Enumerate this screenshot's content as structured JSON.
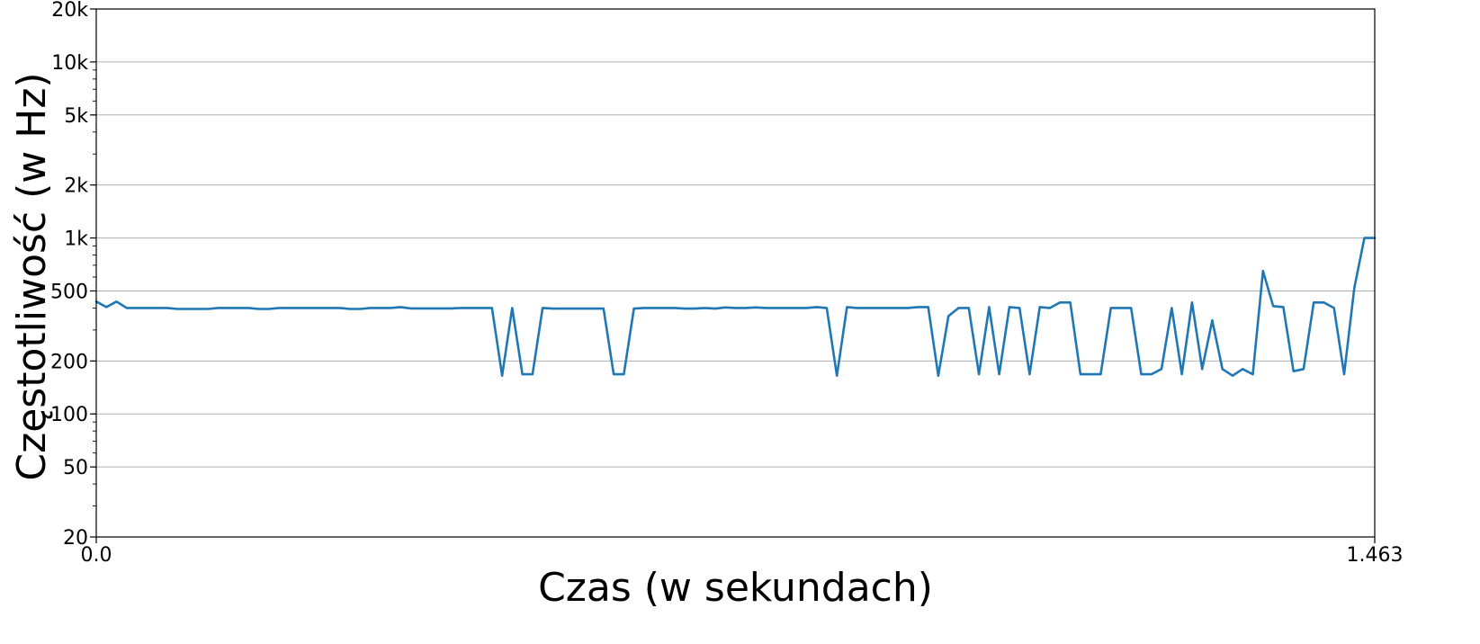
{
  "chart_data": {
    "type": "line",
    "title": "",
    "xlabel": "Czas (w sekundach)",
    "ylabel": "Częstotliwość (w Hz)",
    "xlim": [
      0.0,
      1.463
    ],
    "ylim": [
      20,
      20000
    ],
    "y_scale": "log",
    "grid": "horizontal",
    "x_ticks": [
      {
        "value": 0.0,
        "label": "0.0"
      },
      {
        "value": 1.463,
        "label": "1.463"
      }
    ],
    "y_ticks": [
      {
        "value": 20,
        "label": "20"
      },
      {
        "value": 50,
        "label": "50"
      },
      {
        "value": 100,
        "label": "100"
      },
      {
        "value": 200,
        "label": "200"
      },
      {
        "value": 500,
        "label": "500"
      },
      {
        "value": 1000,
        "label": "1k"
      },
      {
        "value": 2000,
        "label": "2k"
      },
      {
        "value": 5000,
        "label": "5k"
      },
      {
        "value": 10000,
        "label": "10k"
      },
      {
        "value": 20000,
        "label": "20k"
      }
    ],
    "series": [
      {
        "color": "#1f77b4",
        "x": [
          0.0,
          0.0116,
          0.0232,
          0.0348,
          0.0464,
          0.058,
          0.0697,
          0.0813,
          0.0929,
          0.1045,
          0.1161,
          0.1277,
          0.1393,
          0.1509,
          0.1625,
          0.1741,
          0.1858,
          0.1974,
          0.209,
          0.2206,
          0.2322,
          0.2438,
          0.2554,
          0.267,
          0.2786,
          0.2902,
          0.3019,
          0.3135,
          0.3251,
          0.3367,
          0.3483,
          0.3599,
          0.3715,
          0.3831,
          0.3947,
          0.4063,
          0.418,
          0.4296,
          0.4412,
          0.4528,
          0.4644,
          0.476,
          0.4876,
          0.4992,
          0.5108,
          0.5224,
          0.5341,
          0.5457,
          0.5573,
          0.5689,
          0.5805,
          0.5921,
          0.6037,
          0.6153,
          0.6269,
          0.6385,
          0.6502,
          0.6618,
          0.6734,
          0.685,
          0.6966,
          0.7082,
          0.7198,
          0.7314,
          0.743,
          0.7546,
          0.7663,
          0.7779,
          0.7895,
          0.8011,
          0.8127,
          0.8243,
          0.8359,
          0.8475,
          0.8591,
          0.8707,
          0.8824,
          0.894,
          0.9056,
          0.9172,
          0.9288,
          0.9404,
          0.952,
          0.9636,
          0.9752,
          0.9868,
          0.9985,
          1.0101,
          1.0217,
          1.0333,
          1.0449,
          1.0565,
          1.0681,
          1.0797,
          1.0913,
          1.1029,
          1.1146,
          1.1262,
          1.1378,
          1.1494,
          1.161,
          1.1726,
          1.1842,
          1.1958,
          1.2074,
          1.219,
          1.2307,
          1.2423,
          1.2539,
          1.2655,
          1.2771,
          1.2887,
          1.3003,
          1.3119,
          1.3235,
          1.3351,
          1.3468,
          1.3584,
          1.37,
          1.3816,
          1.3932,
          1.4048,
          1.4164,
          1.428,
          1.4396,
          1.4512,
          1.463
        ],
        "y": [
          435,
          405,
          435,
          400,
          400,
          400,
          400,
          400,
          395,
          395,
          395,
          395,
          400,
          400,
          400,
          400,
          395,
          395,
          400,
          400,
          400,
          400,
          400,
          400,
          400,
          395,
          395,
          400,
          400,
          400,
          405,
          398,
          398,
          398,
          398,
          398,
          400,
          400,
          400,
          400,
          165,
          400,
          168,
          168,
          400,
          397,
          397,
          397,
          397,
          397,
          397,
          168,
          168,
          397,
          400,
          400,
          400,
          400,
          397,
          397,
          400,
          397,
          403,
          400,
          400,
          403,
          400,
          400,
          400,
          400,
          400,
          405,
          400,
          165,
          405,
          400,
          400,
          400,
          400,
          400,
          400,
          405,
          405,
          165,
          360,
          400,
          400,
          168,
          405,
          168,
          405,
          400,
          168,
          405,
          400,
          430,
          430,
          168,
          168,
          168,
          400,
          400,
          400,
          168,
          168,
          180,
          400,
          168,
          430,
          180,
          340,
          180,
          165,
          180,
          168,
          650,
          410,
          405,
          175,
          180,
          430,
          430,
          400,
          168,
          520,
          1000,
          1000
        ]
      }
    ]
  }
}
